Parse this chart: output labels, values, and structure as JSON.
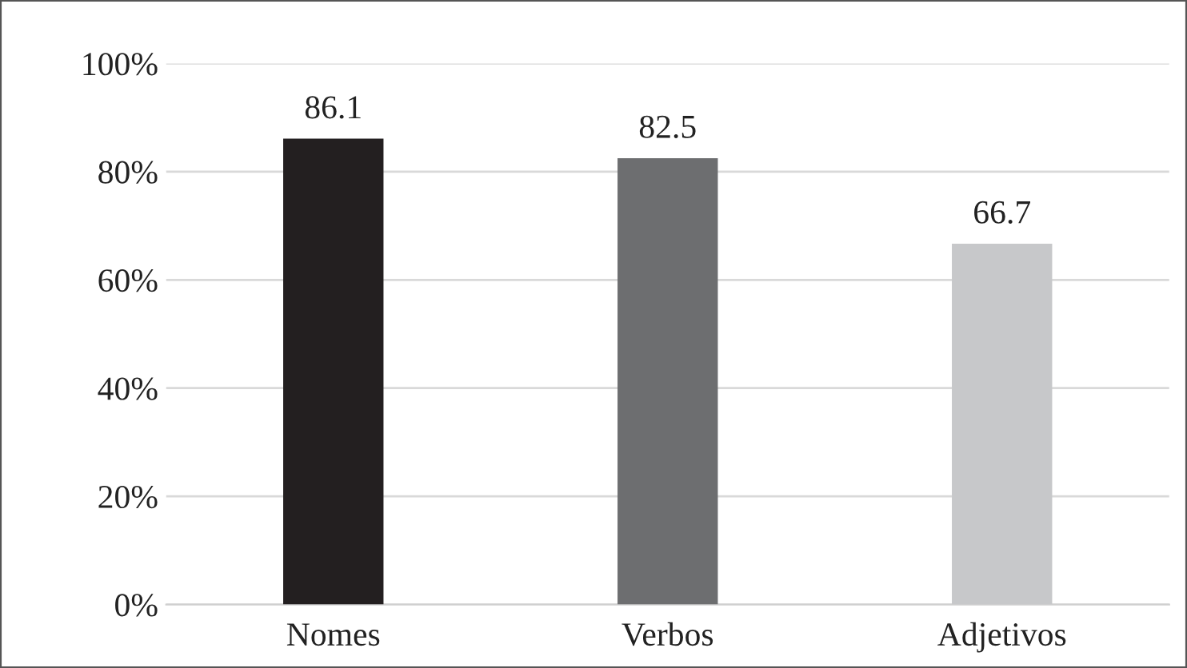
{
  "chart_data": {
    "type": "bar",
    "categories": [
      "Nomes",
      "Verbos",
      "Adjetivos"
    ],
    "values": [
      86.1,
      82.5,
      66.7
    ],
    "colors": [
      "#231f20",
      "#6d6e70",
      "#c7c8ca"
    ],
    "ylim": [
      0,
      100
    ],
    "yticks": [
      {
        "value": 0,
        "label": "0%"
      },
      {
        "value": 20,
        "label": "20%"
      },
      {
        "value": 40,
        "label": "40%"
      },
      {
        "value": 60,
        "label": "60%"
      },
      {
        "value": 80,
        "label": "80%"
      },
      {
        "value": 100,
        "label": "100%"
      }
    ],
    "grid": "y",
    "data_labels": true
  }
}
